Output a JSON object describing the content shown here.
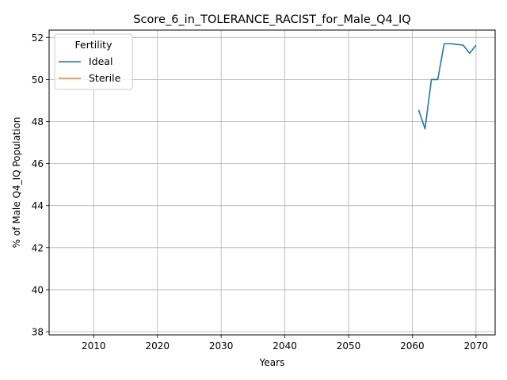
{
  "chart_data": {
    "type": "line",
    "title": "Score_6_in_TOLERANCE_RACIST_for_Male_Q4_IQ",
    "xlabel": "Years",
    "ylabel": "% of Male Q4_IQ Population",
    "xlim": [
      2003,
      2073
    ],
    "ylim": [
      37.85,
      52.35
    ],
    "x_ticks": [
      2010,
      2020,
      2030,
      2040,
      2050,
      2060,
      2070
    ],
    "y_ticks": [
      38,
      40,
      42,
      44,
      46,
      48,
      50,
      52
    ],
    "grid": true,
    "legend": {
      "title": "Fertility",
      "placement": "top-left",
      "entries": [
        "Ideal",
        "Sterile"
      ]
    },
    "series": [
      {
        "name": "Ideal",
        "color": "#1f77b4",
        "x": [
          2061,
          2062,
          2063,
          2064,
          2065,
          2066,
          2067,
          2068,
          2069,
          2070
        ],
        "y": [
          48.55,
          47.65,
          50.0,
          50.0,
          51.7,
          51.7,
          51.67,
          51.63,
          51.25,
          51.63
        ]
      },
      {
        "name": "Sterile",
        "color": "#ff7f0e",
        "x": [],
        "y": []
      }
    ]
  }
}
